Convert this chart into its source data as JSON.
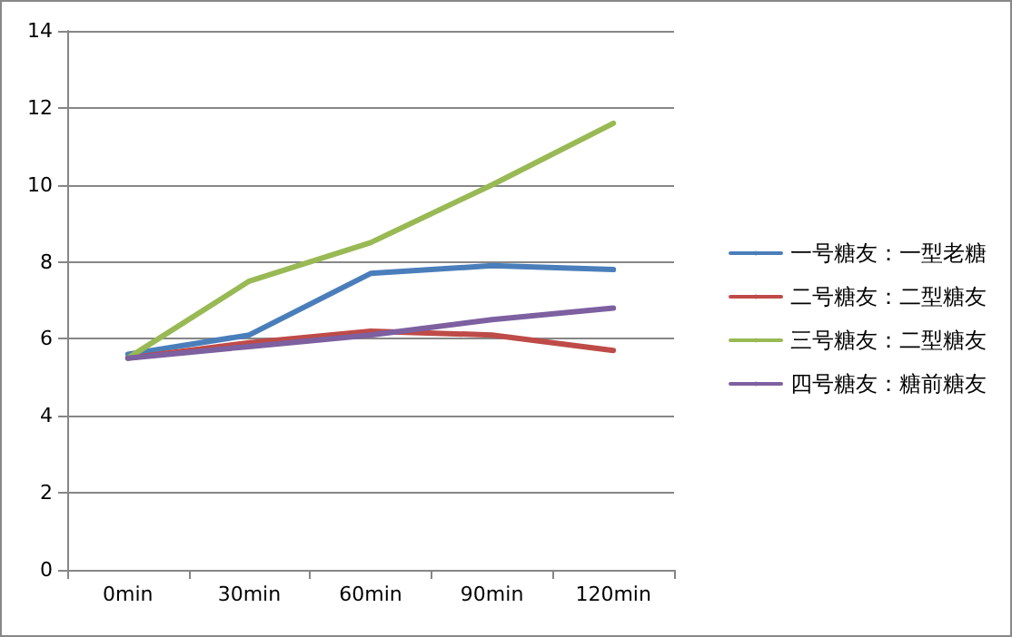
{
  "chart_data": {
    "type": "line",
    "categories": [
      "0min",
      "30min",
      "60min",
      "90min",
      "120min"
    ],
    "series": [
      {
        "name": "一号糖友：一型老糖",
        "color": "#4a7ebb",
        "values": [
          5.6,
          6.1,
          7.7,
          7.9,
          7.8
        ]
      },
      {
        "name": "二号糖友：二型糖友",
        "color": "#be4b48",
        "values": [
          5.5,
          5.9,
          6.2,
          6.1,
          5.7
        ]
      },
      {
        "name": "三号糖友：二型糖友",
        "color": "#98b954",
        "values": [
          5.5,
          7.5,
          8.5,
          10,
          11.6
        ]
      },
      {
        "name": "四号糖友：糖前糖友",
        "color": "#7d60a0",
        "values": [
          5.5,
          5.8,
          6.1,
          6.5,
          6.8
        ]
      }
    ],
    "ylim": [
      0,
      14
    ],
    "yticks": [
      0,
      2,
      4,
      6,
      8,
      10,
      12,
      14
    ],
    "grid": "y",
    "legend": "right",
    "marker": "none",
    "line_style": "solid"
  }
}
